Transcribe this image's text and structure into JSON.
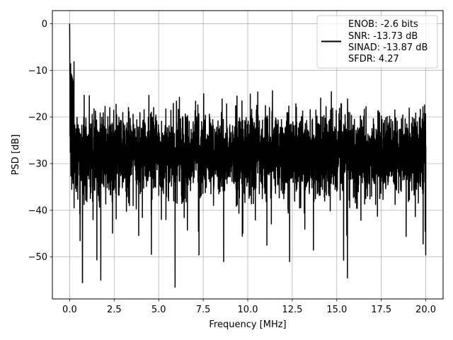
{
  "chart_data": {
    "type": "line",
    "xlabel": "Frequency [MHz]",
    "ylabel": "PSD [dB]",
    "xlim": [
      -0.97,
      20.97
    ],
    "ylim": [
      -59.0,
      2.8
    ],
    "x_ticks": [
      0.0,
      2.5,
      5.0,
      7.5,
      10.0,
      12.5,
      15.0,
      17.5,
      20.0
    ],
    "x_tick_labels": [
      "0.0",
      "2.5",
      "5.0",
      "7.5",
      "10.0",
      "12.5",
      "15.0",
      "17.5",
      "20.0"
    ],
    "y_ticks": [
      0,
      -10,
      -20,
      -30,
      -40,
      -50
    ],
    "y_tick_labels": [
      "0",
      "−10",
      "−20",
      "−30",
      "−40",
      "−50"
    ],
    "grid": true,
    "legend_placement": "top-right",
    "legend_lines": [
      "ENOB: -2.6 bits",
      "SNR: -13.73 dB",
      "SINAD: -13.87 dB",
      "SFDR: 4.27"
    ],
    "series": [
      {
        "color": "#000000",
        "x_range": [
          0.0,
          20.0
        ],
        "points": 4096,
        "peak": {
          "x": 0.0,
          "y": 0.0
        },
        "noise_floor_mean": -28.0,
        "upper_envelope": -15.5,
        "lower_envelope": -45.0,
        "deep_nulls": [
          {
            "x": 0.72,
            "y": -55.5
          },
          {
            "x": 1.75,
            "y": -55.0
          },
          {
            "x": 5.92,
            "y": -56.5
          },
          {
            "x": 15.6,
            "y": -54.5
          }
        ]
      }
    ]
  }
}
